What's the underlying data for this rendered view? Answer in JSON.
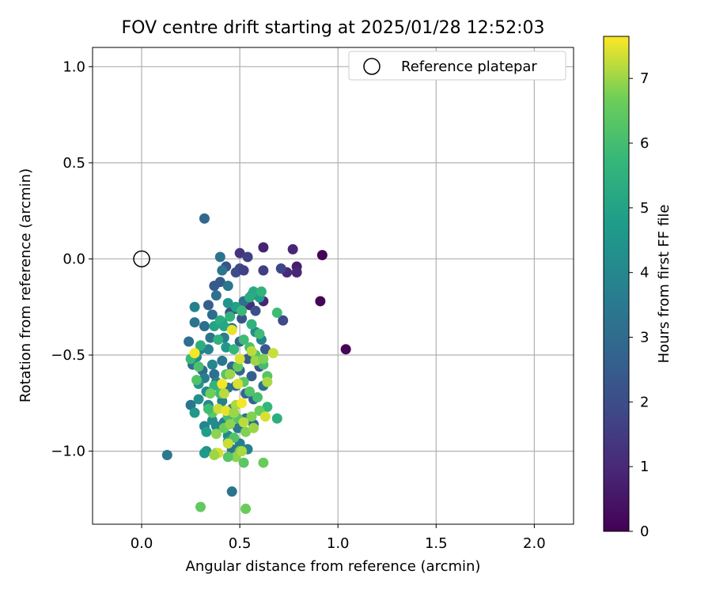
{
  "chart_data": {
    "type": "scatter",
    "title": "FOV centre drift starting at 2025/01/28 12:52:03",
    "xlabel": "Angular distance from reference (arcmin)",
    "ylabel": "Rotation from reference (arcmin)",
    "xlim": [
      -0.25,
      2.2
    ],
    "ylim": [
      -1.38,
      1.1
    ],
    "xticks": [
      0.0,
      0.5,
      1.0,
      1.5,
      2.0
    ],
    "xtick_labels": [
      "0.0",
      "0.5",
      "1.0",
      "1.5",
      "2.0"
    ],
    "yticks": [
      1.0,
      0.5,
      0.0,
      -0.5,
      -1.0
    ],
    "ytick_labels": [
      "1.0",
      "0.5",
      "0.0",
      "−0.5",
      "−1.0"
    ],
    "grid": true,
    "legend": {
      "position": "top-right",
      "label": "Reference platepar"
    },
    "reference_point": {
      "x": 0.0,
      "y": 0.0
    },
    "colorbar": {
      "label": "Hours from first FF file",
      "min": 0,
      "max": 7.65,
      "ticks": [
        0,
        1,
        2,
        3,
        4,
        5,
        6,
        7
      ],
      "tick_labels": [
        "0",
        "1",
        "2",
        "3",
        "4",
        "5",
        "6",
        "7"
      ],
      "colormap": "viridis"
    },
    "series": [
      {
        "points": [
          [
            0.92,
            0.02,
            0.1
          ],
          [
            0.91,
            -0.22,
            0.1
          ],
          [
            1.04,
            -0.47,
            0.1
          ],
          [
            0.62,
            0.06,
            0.8
          ],
          [
            0.77,
            0.05,
            0.9
          ],
          [
            0.79,
            -0.04,
            0.7
          ],
          [
            0.79,
            -0.07,
            0.9
          ],
          [
            0.74,
            -0.07,
            1.0
          ],
          [
            0.62,
            -0.22,
            0.9
          ],
          [
            0.55,
            -0.24,
            1.1
          ],
          [
            0.5,
            0.03,
            1.3
          ],
          [
            0.54,
            0.01,
            1.6
          ],
          [
            0.62,
            -0.06,
            1.6
          ],
          [
            0.71,
            -0.05,
            1.8
          ],
          [
            0.72,
            -0.32,
            1.9
          ],
          [
            0.5,
            -0.05,
            1.9
          ],
          [
            0.48,
            -0.07,
            2.0
          ],
          [
            0.52,
            -0.06,
            1.7
          ],
          [
            0.43,
            -0.04,
            2.2
          ],
          [
            0.4,
            -0.12,
            2.4
          ],
          [
            0.37,
            -0.14,
            2.4
          ],
          [
            0.34,
            -0.24,
            2.6
          ],
          [
            0.32,
            0.21,
            2.9
          ],
          [
            0.4,
            0.01,
            3.3
          ],
          [
            0.41,
            -0.06,
            3.4
          ],
          [
            0.44,
            -0.14,
            3.4
          ],
          [
            0.38,
            -0.19,
            3.2
          ],
          [
            0.46,
            -0.36,
            3.1
          ],
          [
            0.48,
            -0.26,
            2.6
          ],
          [
            0.51,
            -0.31,
            2.3
          ],
          [
            0.45,
            -0.28,
            2.0
          ],
          [
            0.58,
            -0.27,
            2.1
          ],
          [
            0.56,
            -0.19,
            2.7
          ],
          [
            0.52,
            -0.22,
            3.2
          ],
          [
            0.36,
            -0.29,
            3.0
          ],
          [
            0.32,
            -0.35,
            3.1
          ],
          [
            0.27,
            -0.33,
            3.3
          ],
          [
            0.27,
            -0.25,
            3.8
          ],
          [
            0.35,
            -0.41,
            3.3
          ],
          [
            0.42,
            -0.41,
            3.6
          ],
          [
            0.24,
            -0.43,
            3.1
          ],
          [
            0.3,
            -0.47,
            3.7
          ],
          [
            0.28,
            -0.51,
            4.2
          ],
          [
            0.34,
            -0.47,
            3.9
          ],
          [
            0.26,
            -0.55,
            3.2
          ],
          [
            0.31,
            -0.58,
            2.9
          ],
          [
            0.37,
            -0.6,
            3.1
          ],
          [
            0.41,
            -0.53,
            3.4
          ],
          [
            0.46,
            -0.56,
            3.0
          ],
          [
            0.5,
            -0.58,
            2.8
          ],
          [
            0.56,
            -0.61,
            2.6
          ],
          [
            0.63,
            -0.47,
            2.4
          ],
          [
            0.6,
            -0.56,
            2.2
          ],
          [
            0.54,
            -0.52,
            2.5
          ],
          [
            0.5,
            -0.43,
            2.7
          ],
          [
            0.43,
            -0.46,
            4.6
          ],
          [
            0.36,
            -0.55,
            4.0
          ],
          [
            0.32,
            -0.62,
            3.7
          ],
          [
            0.29,
            -0.65,
            4.5
          ],
          [
            0.33,
            -0.69,
            4.1
          ],
          [
            0.38,
            -0.64,
            3.6
          ],
          [
            0.44,
            -0.67,
            3.3
          ],
          [
            0.48,
            -0.66,
            3.0
          ],
          [
            0.53,
            -0.7,
            2.9
          ],
          [
            0.57,
            -0.73,
            2.7
          ],
          [
            0.62,
            -0.66,
            3.2
          ],
          [
            0.25,
            -0.76,
            3.4
          ],
          [
            0.29,
            -0.73,
            4.3
          ],
          [
            0.34,
            -0.76,
            4.0
          ],
          [
            0.27,
            -0.8,
            4.6
          ],
          [
            0.32,
            -0.87,
            3.9
          ],
          [
            0.36,
            -0.84,
            4.2
          ],
          [
            0.41,
            -0.74,
            3.8
          ],
          [
            0.46,
            -0.78,
            3.5
          ],
          [
            0.42,
            -0.85,
            3.6
          ],
          [
            0.38,
            -0.87,
            4.1
          ],
          [
            0.33,
            -0.9,
            4.8
          ],
          [
            0.44,
            -0.92,
            4.0
          ],
          [
            0.49,
            -0.88,
            3.5
          ],
          [
            0.53,
            -0.83,
            3.2
          ],
          [
            0.57,
            -0.86,
            3.0
          ],
          [
            0.5,
            -0.96,
            3.7
          ],
          [
            0.46,
            -0.99,
            3.3
          ],
          [
            0.54,
            -0.99,
            3.8
          ],
          [
            0.33,
            -1.0,
            4.3
          ],
          [
            0.32,
            -1.01,
            4.6
          ],
          [
            0.44,
            -0.95,
            4.9
          ],
          [
            0.13,
            -1.02,
            3.5
          ],
          [
            0.46,
            -1.21,
            3.3
          ],
          [
            0.61,
            -0.42,
            3.8
          ],
          [
            0.58,
            -0.38,
            4.2
          ],
          [
            0.6,
            -0.2,
            4.8
          ],
          [
            0.57,
            -0.17,
            5.2
          ],
          [
            0.48,
            -0.25,
            4.9
          ],
          [
            0.44,
            -0.23,
            4.5
          ],
          [
            0.41,
            -0.33,
            4.7
          ],
          [
            0.37,
            -0.35,
            5.0
          ],
          [
            0.4,
            -0.32,
            5.4
          ],
          [
            0.45,
            -0.3,
            5.6
          ],
          [
            0.51,
            -0.27,
            5.8
          ],
          [
            0.56,
            -0.34,
            5.5
          ],
          [
            0.6,
            -0.39,
            5.9
          ],
          [
            0.55,
            -0.46,
            6.1
          ],
          [
            0.58,
            -0.5,
            6.2
          ],
          [
            0.62,
            -0.55,
            6.0
          ],
          [
            0.47,
            -0.47,
            5.7
          ],
          [
            0.52,
            -0.42,
            5.9
          ],
          [
            0.39,
            -0.42,
            5.5
          ],
          [
            0.3,
            -0.45,
            5.4
          ],
          [
            0.25,
            -0.52,
            5.8
          ],
          [
            0.29,
            -0.56,
            6.1
          ],
          [
            0.37,
            -0.66,
            5.6
          ],
          [
            0.4,
            -0.7,
            5.9
          ],
          [
            0.43,
            -0.6,
            6.3
          ],
          [
            0.49,
            -0.56,
            6.5
          ],
          [
            0.52,
            -0.64,
            6.4
          ],
          [
            0.55,
            -0.69,
            6.2
          ],
          [
            0.59,
            -0.72,
            6.0
          ],
          [
            0.64,
            -0.61,
            6.3
          ],
          [
            0.64,
            -0.77,
            5.7
          ],
          [
            0.69,
            -0.83,
            5.4
          ],
          [
            0.6,
            -0.79,
            6.6
          ],
          [
            0.56,
            -0.82,
            6.8
          ],
          [
            0.49,
            -0.83,
            6.3
          ],
          [
            0.44,
            -0.82,
            6.0
          ],
          [
            0.36,
            -0.8,
            6.4
          ],
          [
            0.34,
            -0.78,
            5.9
          ],
          [
            0.35,
            -0.7,
            6.7
          ],
          [
            0.28,
            -0.63,
            6.2
          ],
          [
            0.42,
            -0.88,
            6.6
          ],
          [
            0.47,
            -0.93,
            6.2
          ],
          [
            0.53,
            -0.9,
            6.8
          ],
          [
            0.5,
            -1.0,
            6.5
          ],
          [
            0.48,
            -1.03,
            6.9
          ],
          [
            0.52,
            -1.06,
            6.4
          ],
          [
            0.62,
            -1.06,
            6.6
          ],
          [
            0.44,
            -1.03,
            6.3
          ],
          [
            0.38,
            -1.01,
            6.8
          ],
          [
            0.38,
            -0.91,
            6.9
          ],
          [
            0.3,
            -1.29,
            6.5
          ],
          [
            0.53,
            -1.3,
            6.6
          ],
          [
            0.69,
            -0.28,
            5.9
          ],
          [
            0.61,
            -0.17,
            5.6
          ],
          [
            0.55,
            -0.2,
            5.3
          ],
          [
            0.42,
            -0.35,
            5.1
          ],
          [
            0.46,
            -0.37,
            7.5
          ],
          [
            0.27,
            -0.49,
            7.6
          ],
          [
            0.5,
            -0.52,
            7.4
          ],
          [
            0.56,
            -0.48,
            7.2
          ],
          [
            0.58,
            -0.53,
            7.0
          ],
          [
            0.62,
            -0.52,
            6.8
          ],
          [
            0.67,
            -0.49,
            7.3
          ],
          [
            0.64,
            -0.64,
            7.1
          ],
          [
            0.45,
            -0.6,
            7.0
          ],
          [
            0.49,
            -0.65,
            7.4
          ],
          [
            0.41,
            -0.65,
            7.6
          ],
          [
            0.42,
            -0.7,
            7.2
          ],
          [
            0.39,
            -0.78,
            7.3
          ],
          [
            0.43,
            -0.79,
            7.5
          ],
          [
            0.48,
            -0.76,
            7.1
          ],
          [
            0.51,
            -0.75,
            7.6
          ],
          [
            0.47,
            -0.8,
            7.0
          ],
          [
            0.52,
            -0.85,
            7.2
          ],
          [
            0.57,
            -0.88,
            7.0
          ],
          [
            0.63,
            -0.82,
            7.4
          ],
          [
            0.45,
            -0.86,
            6.9
          ],
          [
            0.44,
            -0.96,
            7.3
          ],
          [
            0.51,
            -1.0,
            7.1
          ],
          [
            0.39,
            -1.01,
            7.4
          ],
          [
            0.37,
            -1.02,
            7.0
          ]
        ]
      }
    ]
  }
}
